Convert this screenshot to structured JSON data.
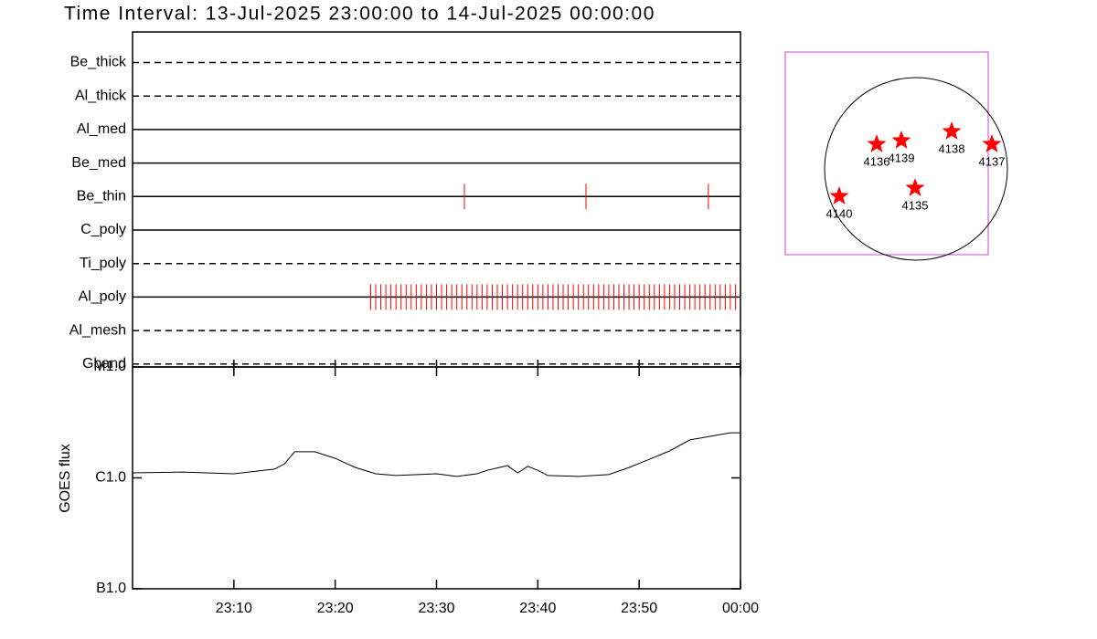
{
  "chart_data": [
    {
      "type": "timeline",
      "title": "Time Interval: 13-Jul-2025 23:00:00 to 14-Jul-2025 00:00:00",
      "categories": [
        "Be_thick",
        "Al_thick",
        "Al_med",
        "Be_med",
        "Be_thin",
        "C_poly",
        "Ti_poly",
        "Al_poly",
        "Al_mesh",
        "Gband"
      ],
      "line_styles": [
        "dashed",
        "dashed",
        "solid",
        "solid",
        "solid",
        "solid",
        "dashed",
        "solid",
        "dashed",
        "dashed"
      ],
      "events": [
        [],
        [],
        [],
        [],
        [
          "23:32:45",
          "23:44:45",
          "23:56:50"
        ],
        [],
        [],
        [
          "23:23:30",
          "23:24:00",
          "23:24:30",
          "23:25:00",
          "23:25:30",
          "23:26:00",
          "23:26:30",
          "23:27:00",
          "23:27:30",
          "23:28:00",
          "23:28:30",
          "23:29:00",
          "23:29:30",
          "23:30:00",
          "23:30:30",
          "23:31:00",
          "23:31:30",
          "23:32:00",
          "23:32:30",
          "23:33:00",
          "23:33:30",
          "23:34:00",
          "23:34:30",
          "23:35:00",
          "23:35:30",
          "23:36:00",
          "23:36:30",
          "23:37:00",
          "23:37:30",
          "23:38:00",
          "23:38:30",
          "23:39:00",
          "23:39:30",
          "23:40:00",
          "23:40:30",
          "23:41:00",
          "23:41:30",
          "23:42:00",
          "23:42:30",
          "23:43:00",
          "23:43:30",
          "23:44:00",
          "23:44:30",
          "23:45:00",
          "23:45:30",
          "23:46:00",
          "23:46:30",
          "23:47:00",
          "23:47:30",
          "23:48:00",
          "23:48:30",
          "23:49:00",
          "23:49:30",
          "23:50:00",
          "23:50:30",
          "23:51:00",
          "23:51:30",
          "23:52:00",
          "23:52:30",
          "23:53:00",
          "23:53:30",
          "23:54:00",
          "23:54:30",
          "23:55:00",
          "23:55:30",
          "23:56:00",
          "23:56:30",
          "23:57:00",
          "23:57:30",
          "23:58:00",
          "23:58:30",
          "23:59:00",
          "23:59:30"
        ],
        [],
        []
      ],
      "xlim": [
        "23:00",
        "00:00"
      ],
      "color": "#ff0000"
    },
    {
      "type": "line",
      "ylabel": "GOES flux",
      "x": [
        "23:00",
        "23:05",
        "23:10",
        "23:14",
        "23:15",
        "23:16",
        "23:18",
        "23:20",
        "23:22",
        "23:24",
        "23:26",
        "23:30",
        "23:32",
        "23:34",
        "23:35",
        "23:37",
        "23:38",
        "23:39",
        "23:40",
        "23:41",
        "23:44",
        "23:47",
        "23:49",
        "23:51",
        "23:53",
        "23:55",
        "23:57",
        "23:59",
        "00:00"
      ],
      "values": [
        1.11e-06,
        1.13e-06,
        1.09e-06,
        1.2e-06,
        1.34e-06,
        1.72e-06,
        1.72e-06,
        1.5e-06,
        1.24e-06,
        1.09e-06,
        1.05e-06,
        1.09e-06,
        1.03e-06,
        1.09e-06,
        1.17e-06,
        1.29e-06,
        1.11e-06,
        1.27e-06,
        1.17e-06,
        1.05e-06,
        1.03e-06,
        1.07e-06,
        1.24e-06,
        1.47e-06,
        1.75e-06,
        2.2e-06,
        2.37e-06,
        2.55e-06,
        2.55e-06
      ],
      "xlim": [
        "23:00",
        "00:00"
      ],
      "xticks": [
        "23:10",
        "23:20",
        "23:30",
        "23:40",
        "23:50",
        "00:00"
      ],
      "ylim": [
        1e-07,
        1e-05
      ],
      "yticks": [
        {
          "value": 1e-05,
          "label": "M1.0"
        },
        {
          "value": 1e-06,
          "label": "C1.0"
        },
        {
          "value": 1e-07,
          "label": "B1.0"
        }
      ],
      "log_scale": true,
      "color": "#000000"
    }
  ],
  "map": {
    "regions": [
      {
        "label": "4136"
      },
      {
        "label": "4139"
      },
      {
        "label": "4138"
      },
      {
        "label": "4137"
      },
      {
        "label": "4135"
      },
      {
        "label": "4140"
      }
    ],
    "box_color": "#cc44cc",
    "marker_color": "#ff0000"
  }
}
